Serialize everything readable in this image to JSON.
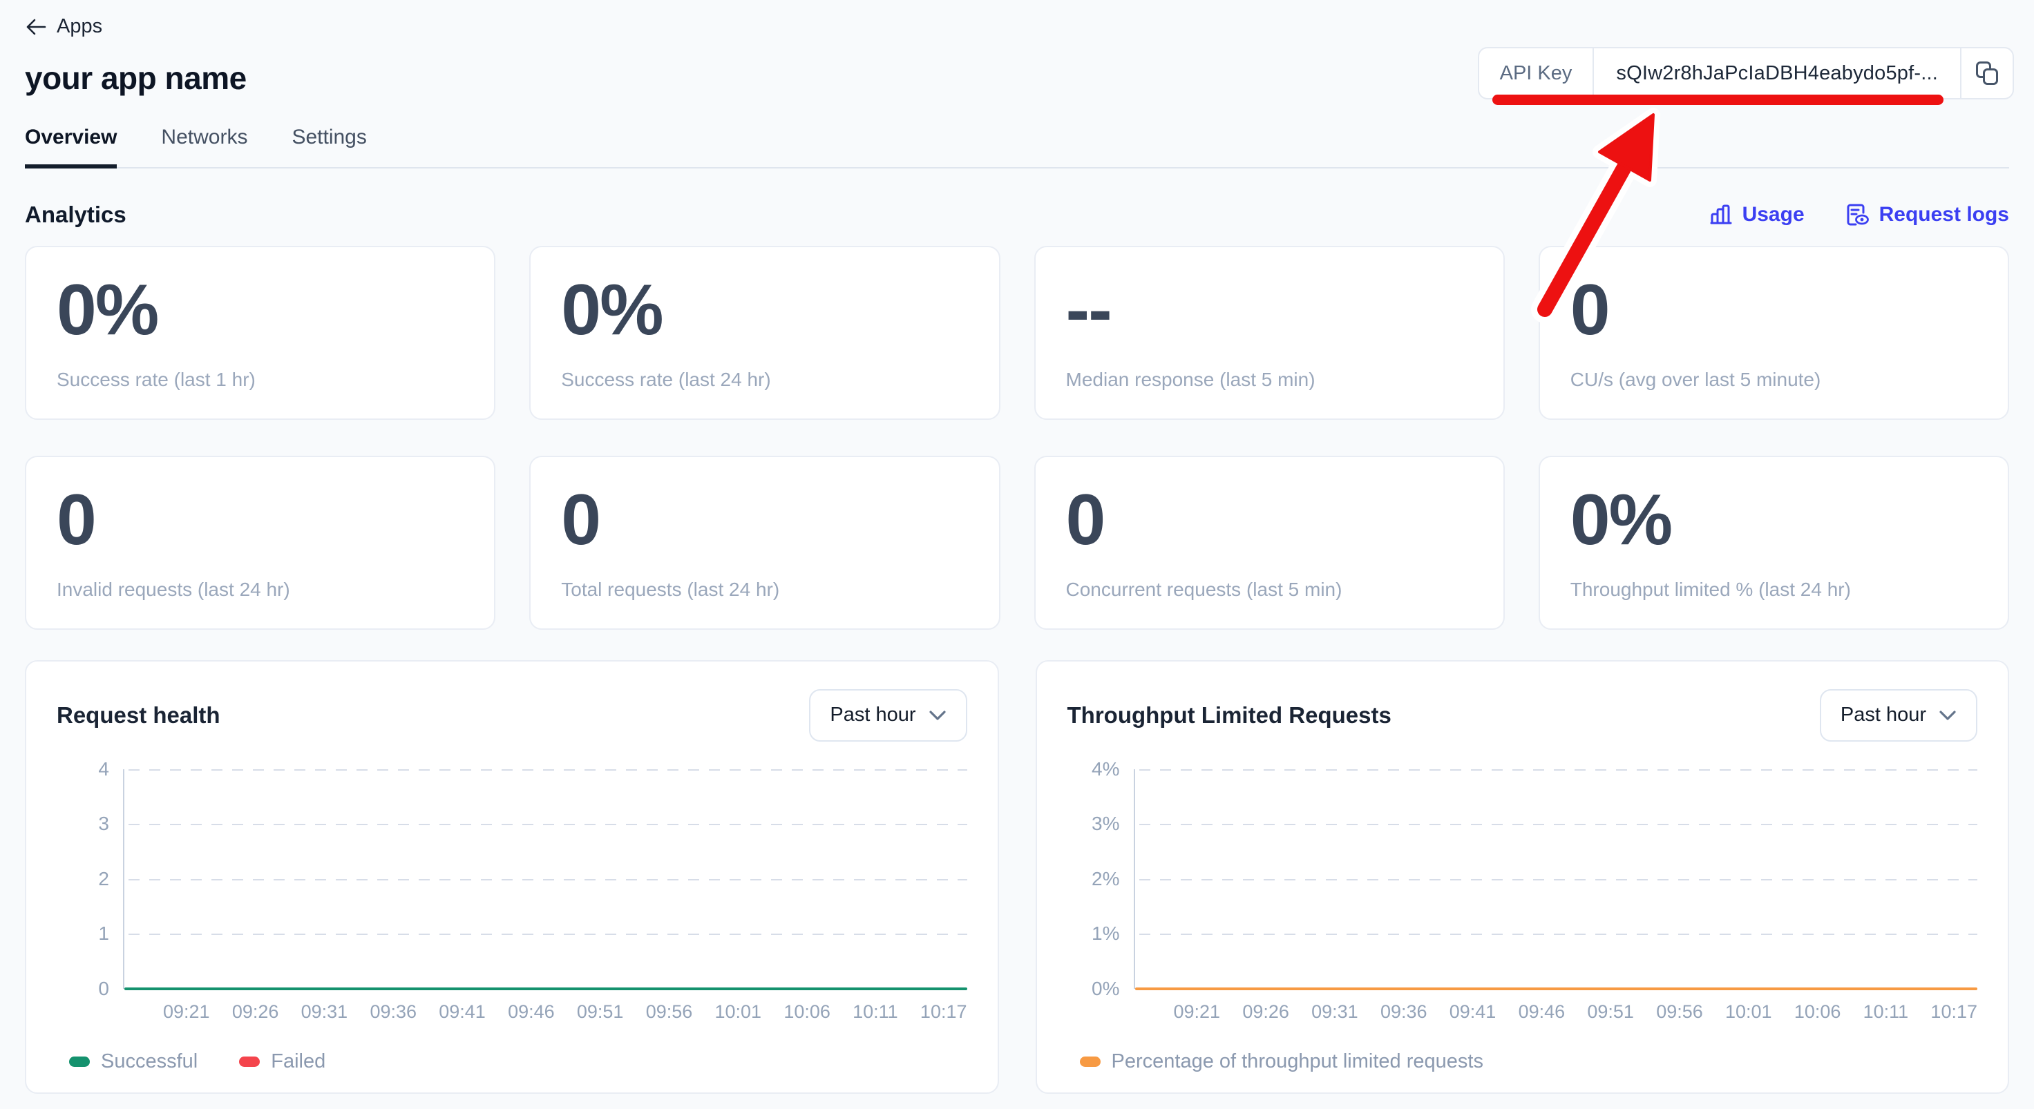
{
  "header": {
    "back_label": "Apps",
    "app_title": "your app name",
    "tabs": [
      {
        "label": "Overview",
        "active": true
      },
      {
        "label": "Networks",
        "active": false
      },
      {
        "label": "Settings",
        "active": false
      }
    ],
    "api_key": {
      "label": "API Key",
      "value": "sQIw2r8hJaPcIaDBH4eabydo5pf-..."
    }
  },
  "annotation": {
    "color": "#ed1111",
    "outline_color": "#ffffff",
    "meaning": "hand-drawn red underline and arrow pointing at the API key"
  },
  "analytics": {
    "heading": "Analytics",
    "link_color": "#3b3ff2",
    "links": [
      {
        "label": "Usage",
        "icon": "bar-chart-icon"
      },
      {
        "label": "Request logs",
        "icon": "request-logs-icon"
      }
    ],
    "stats": [
      {
        "value": "0%",
        "label": "Success rate (last 1 hr)"
      },
      {
        "value": "0%",
        "label": "Success rate (last 24 hr)"
      },
      {
        "value": "--",
        "label": "Median response (last 5 min)"
      },
      {
        "value": "0",
        "label": "CU/s (avg over last 5 minute)"
      },
      {
        "value": "0",
        "label": "Invalid requests (last 24 hr)"
      },
      {
        "value": "0",
        "label": "Total requests (last 24 hr)"
      },
      {
        "value": "0",
        "label": "Concurrent requests (last 5 min)"
      },
      {
        "value": "0%",
        "label": "Throughput limited % (last 24 hr)"
      }
    ]
  },
  "charts": [
    {
      "title": "Request health",
      "range_label": "Past hour",
      "y_ticks": [
        "4",
        "3",
        "2",
        "1",
        "0"
      ],
      "x_ticks": [
        "09:21",
        "09:26",
        "09:31",
        "09:36",
        "09:41",
        "09:46",
        "09:51",
        "09:56",
        "10:01",
        "10:06",
        "10:11",
        "10:17"
      ],
      "line_color": "#15926e",
      "legend": [
        {
          "label": "Successful",
          "color": "#15926e"
        },
        {
          "label": "Failed",
          "color": "#f4444c"
        }
      ]
    },
    {
      "title": "Throughput Limited Requests",
      "range_label": "Past hour",
      "y_ticks": [
        "4%",
        "3%",
        "2%",
        "1%",
        "0%"
      ],
      "x_ticks": [
        "09:21",
        "09:26",
        "09:31",
        "09:36",
        "09:41",
        "09:46",
        "09:51",
        "09:56",
        "10:01",
        "10:06",
        "10:11",
        "10:17"
      ],
      "line_color": "#f79a43",
      "legend": [
        {
          "label": "Percentage of throughput limited requests",
          "color": "#f79a43"
        }
      ]
    }
  ],
  "chart_data": [
    {
      "type": "line",
      "title": "Request health",
      "x": [
        "09:21",
        "09:26",
        "09:31",
        "09:36",
        "09:41",
        "09:46",
        "09:51",
        "09:56",
        "10:01",
        "10:06",
        "10:11",
        "10:17"
      ],
      "series": [
        {
          "name": "Successful",
          "values": [
            0,
            0,
            0,
            0,
            0,
            0,
            0,
            0,
            0,
            0,
            0,
            0
          ],
          "color": "#15926e"
        },
        {
          "name": "Failed",
          "values": [
            0,
            0,
            0,
            0,
            0,
            0,
            0,
            0,
            0,
            0,
            0,
            0
          ],
          "color": "#f4444c"
        }
      ],
      "ylim": [
        0,
        4
      ],
      "grid": "dashed horizontal",
      "legend_position": "bottom-left"
    },
    {
      "type": "line",
      "title": "Throughput Limited Requests",
      "x": [
        "09:21",
        "09:26",
        "09:31",
        "09:36",
        "09:41",
        "09:46",
        "09:51",
        "09:56",
        "10:01",
        "10:06",
        "10:11",
        "10:17"
      ],
      "series": [
        {
          "name": "Percentage of throughput limited requests",
          "values": [
            0,
            0,
            0,
            0,
            0,
            0,
            0,
            0,
            0,
            0,
            0,
            0
          ],
          "color": "#f79a43"
        }
      ],
      "ylim_percent": [
        "0%",
        "4%"
      ],
      "grid": "dashed horizontal",
      "legend_position": "bottom-left"
    }
  ]
}
